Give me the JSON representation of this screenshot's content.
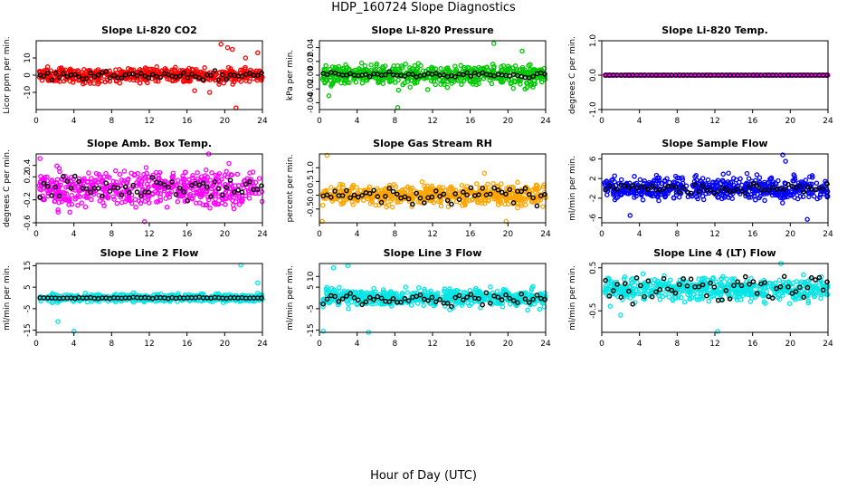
{
  "figure": {
    "title": "HDP_160724  Slope Diagnostics",
    "xlabel": "Hour of Day (UTC)"
  },
  "chart_data": [
    {
      "type": "scatter",
      "title": "Slope Li-820 CO2",
      "ylabel": "Licor ppm per min.",
      "color": "#ff0000",
      "xlim": [
        0,
        24
      ],
      "xticks": [
        0,
        4,
        8,
        12,
        16,
        20,
        24
      ],
      "ylim": [
        -20,
        20
      ],
      "yticks": [
        -10,
        0,
        10
      ],
      "ytick_labels": [
        "-10",
        "0",
        "10"
      ],
      "spread": 4,
      "outlier_pts": [
        [
          19.6,
          18
        ],
        [
          20.3,
          16
        ],
        [
          20.8,
          15
        ],
        [
          21.2,
          -19
        ],
        [
          18.4,
          -10
        ],
        [
          16.8,
          -9
        ],
        [
          23.5,
          13
        ],
        [
          22.2,
          10
        ]
      ],
      "black_spread": 2.5,
      "black_pts": [],
      "seed": 1
    },
    {
      "type": "scatter",
      "title": "Slope Li-820 Pressure",
      "ylabel": "kPa per min.",
      "color": "#00c800",
      "xlim": [
        0,
        24
      ],
      "xticks": [
        0,
        4,
        8,
        12,
        16,
        20,
        24
      ],
      "ylim": [
        -0.05,
        0.05
      ],
      "yticks": [
        -0.04,
        -0.02,
        0.0,
        0.02,
        0.04
      ],
      "ytick_labels": [
        "-0.04",
        "-0.02",
        "0.00",
        "0.02",
        "0.04"
      ],
      "spread": 0.015,
      "outlier_pts": [
        [
          8.3,
          -0.047
        ],
        [
          18.5,
          0.046
        ],
        [
          1.0,
          -0.03
        ],
        [
          21.5,
          0.035
        ]
      ],
      "black_spread": 0.004,
      "black_pts": [],
      "seed": 2
    },
    {
      "type": "scatter",
      "title": "Slope Li-820 Temp.",
      "ylabel": "degrees C per min.",
      "color": "#ff00ff",
      "xlim": [
        0,
        24
      ],
      "xticks": [
        0,
        4,
        8,
        12,
        16,
        20,
        24
      ],
      "ylim": [
        -1.0,
        1.0
      ],
      "yticks": [
        -1.0,
        0.0,
        1.0
      ],
      "ytick_labels": [
        "-1.0",
        "0.0",
        "1.0"
      ],
      "spread": 0.0,
      "outlier_pts": [],
      "black_spread": 0.0,
      "black_pts": [],
      "seed": 3
    },
    {
      "type": "scatter",
      "title": "Slope Amb. Box Temp.",
      "ylabel": "degrees C per min.",
      "color": "#ff00ff",
      "xlim": [
        0,
        24
      ],
      "xticks": [
        0,
        4,
        8,
        12,
        16,
        20,
        24
      ],
      "ylim": [
        -0.6,
        0.6
      ],
      "yticks": [
        -0.6,
        -0.2,
        0.2,
        0.4
      ],
      "ytick_labels": [
        "-0.6",
        "-0.2",
        "0.2",
        "0.4"
      ],
      "spread": 0.3,
      "outlier_pts": [
        [
          11.5,
          -0.58
        ],
        [
          18.3,
          0.6
        ],
        [
          0.4,
          0.52
        ]
      ],
      "black_spread": 0.22,
      "black_pts": [],
      "seed": 4
    },
    {
      "type": "scatter",
      "title": "Slope Gas Stream RH",
      "ylabel": "percent per min.",
      "color": "#ffa500",
      "xlim": [
        0,
        24
      ],
      "xticks": [
        0,
        4,
        8,
        12,
        16,
        20,
        24
      ],
      "ylim": [
        -1.0,
        1.5
      ],
      "yticks": [
        -0.5,
        0.0,
        0.5,
        1.0
      ],
      "ytick_labels": [
        "-0.5",
        "0.0",
        "0.5",
        "1.0"
      ],
      "spread": 0.35,
      "outlier_pts": [
        [
          0.8,
          1.45
        ],
        [
          0.3,
          -0.95
        ],
        [
          19.8,
          -0.95
        ],
        [
          17.5,
          0.8
        ]
      ],
      "black_spread": 0.3,
      "black_pts": [],
      "seed": 5
    },
    {
      "type": "scatter",
      "title": "Slope Sample Flow",
      "ylabel": "ml/min per min.",
      "color": "#0000ff",
      "xlim": [
        0,
        24
      ],
      "xticks": [
        0,
        4,
        8,
        12,
        16,
        20,
        24
      ],
      "ylim": [
        -7,
        7
      ],
      "yticks": [
        -6,
        -2,
        2,
        6
      ],
      "ytick_labels": [
        "-6",
        "-2",
        "2",
        "6"
      ],
      "spread": 2.2,
      "outlier_pts": [
        [
          19.2,
          6.8
        ],
        [
          19.5,
          5.5
        ],
        [
          21.8,
          -6.3
        ],
        [
          3.0,
          -5.5
        ]
      ],
      "black_spread": 1.0,
      "black_pts": [],
      "seed": 6
    },
    {
      "type": "scatter",
      "title": "Slope Line 2 Flow",
      "ylabel": "ml/min per min.",
      "color": "#00e5e5",
      "xlim": [
        0,
        24
      ],
      "xticks": [
        0,
        4,
        8,
        12,
        16,
        20,
        24
      ],
      "ylim": [
        -16,
        16
      ],
      "yticks": [
        -15,
        -5,
        5,
        15
      ],
      "ytick_labels": [
        "-15",
        "-5",
        "5",
        "15"
      ],
      "spread": 1.6,
      "outlier_pts": [
        [
          4.0,
          -15.5
        ],
        [
          21.7,
          15.3
        ],
        [
          2.3,
          -11
        ],
        [
          23.5,
          7
        ]
      ],
      "black_spread": 0.3,
      "black_pts": [],
      "seed": 7
    },
    {
      "type": "scatter",
      "title": "Slope Line 3 Flow",
      "ylabel": "ml/min per min.",
      "color": "#00e5e5",
      "xlim": [
        0,
        24
      ],
      "xticks": [
        0,
        4,
        8,
        12,
        16,
        20,
        24
      ],
      "ylim": [
        -16,
        16
      ],
      "yticks": [
        -15,
        -5,
        5,
        10
      ],
      "ytick_labels": [
        "-15",
        "-5",
        "5",
        "10"
      ],
      "spread": 4,
      "outlier_pts": [
        [
          5.2,
          -16
        ],
        [
          0.4,
          -15.5
        ],
        [
          3.0,
          15
        ],
        [
          1.5,
          14
        ]
      ],
      "black_spread": 3.5,
      "black_pts": [],
      "seed": 8
    },
    {
      "type": "scatter",
      "title": "Slope Line 4 (LT) Flow",
      "ylabel": "ml/min per min.",
      "color": "#00e5e5",
      "xlim": [
        0,
        24
      ],
      "xticks": [
        0,
        4,
        8,
        12,
        16,
        20,
        24
      ],
      "ylim": [
        -1.0,
        0.6
      ],
      "yticks": [
        -0.5,
        0.5
      ],
      "ytick_labels": [
        "-0.5",
        "0.5"
      ],
      "spread": 0.25,
      "outlier_pts": [
        [
          12.3,
          -0.98
        ],
        [
          19.0,
          0.6
        ],
        [
          2.0,
          -0.6
        ]
      ],
      "black_spread": 0.3,
      "black_pts": [],
      "seed": 9
    }
  ]
}
